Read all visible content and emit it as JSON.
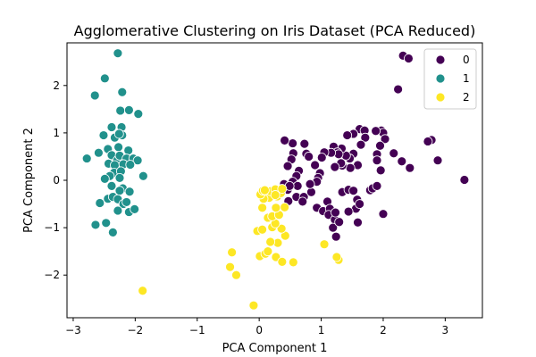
{
  "chart_data": {
    "type": "scatter",
    "title": "Agglomerative Clustering on Iris Dataset (PCA Reduced)",
    "xlabel": "PCA Component 1",
    "ylabel": "PCA Component 2",
    "xlim": [
      -3.1,
      3.6
    ],
    "ylim": [
      -2.9,
      2.9
    ],
    "xticks": [
      -3,
      -2,
      -1,
      0,
      1,
      2,
      3
    ],
    "yticks": [
      -2,
      -1,
      0,
      1,
      2
    ],
    "grid": false,
    "legend": {
      "placement": "top-right",
      "entries": [
        "0",
        "1",
        "2"
      ]
    },
    "colors": {
      "0": "#440154",
      "1": "#21918c",
      "2": "#fde725"
    },
    "series": [
      {
        "name": "0",
        "color": "#440154",
        "points": [
          [
            2.32,
            2.63
          ],
          [
            2.41,
            2.57
          ],
          [
            2.24,
            1.92
          ],
          [
            2.78,
            0.85
          ],
          [
            2.72,
            0.82
          ],
          [
            2.88,
            0.42
          ],
          [
            3.31,
            0.01
          ],
          [
            1.97,
            1.05
          ],
          [
            2.0,
            1.0
          ],
          [
            1.88,
            1.04
          ],
          [
            2.03,
            0.87
          ],
          [
            1.95,
            0.73
          ],
          [
            1.9,
            0.55
          ],
          [
            1.9,
            0.42
          ],
          [
            2.17,
            0.57
          ],
          [
            2.3,
            0.4
          ],
          [
            2.43,
            0.26
          ],
          [
            1.96,
            0.21
          ],
          [
            1.62,
            1.08
          ],
          [
            1.7,
            1.05
          ],
          [
            1.71,
            0.9
          ],
          [
            1.64,
            0.75
          ],
          [
            1.52,
            0.98
          ],
          [
            1.42,
            0.95
          ],
          [
            1.52,
            0.56
          ],
          [
            1.46,
            0.46
          ],
          [
            1.4,
            0.52
          ],
          [
            1.59,
            0.32
          ],
          [
            1.47,
            0.26
          ],
          [
            1.34,
            0.31
          ],
          [
            1.33,
            0.67
          ],
          [
            1.2,
            0.71
          ],
          [
            1.26,
            0.59
          ],
          [
            1.28,
            0.55
          ],
          [
            1.32,
            0.36
          ],
          [
            1.22,
            0.28
          ],
          [
            1.16,
            0.58
          ],
          [
            1.05,
            0.59
          ],
          [
            1.01,
            0.48
          ],
          [
            0.9,
            0.32
          ],
          [
            0.98,
            0.15
          ],
          [
            0.95,
            0.05
          ],
          [
            0.93,
            -0.03
          ],
          [
            0.73,
            0.77
          ],
          [
            0.76,
            0.56
          ],
          [
            0.8,
            0.5
          ],
          [
            0.54,
            0.78
          ],
          [
            0.55,
            0.57
          ],
          [
            0.52,
            0.44
          ],
          [
            0.46,
            0.3
          ],
          [
            0.41,
            0.84
          ],
          [
            0.64,
            0.2
          ],
          [
            0.6,
            0.09
          ],
          [
            0.54,
            -0.03
          ],
          [
            0.46,
            -0.2
          ],
          [
            0.4,
            -0.08
          ],
          [
            0.6,
            -0.35
          ],
          [
            0.72,
            -0.35
          ],
          [
            0.84,
            -0.25
          ],
          [
            0.93,
            -0.58
          ],
          [
            1.03,
            -0.65
          ],
          [
            1.1,
            -0.45
          ],
          [
            1.14,
            -0.6
          ],
          [
            1.12,
            -0.73
          ],
          [
            1.22,
            -0.83
          ],
          [
            1.23,
            -0.68
          ],
          [
            1.19,
            -1.0
          ],
          [
            1.24,
            -1.19
          ],
          [
            1.34,
            -0.25
          ],
          [
            1.44,
            -0.2
          ],
          [
            1.52,
            -0.22
          ],
          [
            1.58,
            -0.41
          ],
          [
            1.56,
            -0.6
          ],
          [
            1.44,
            -0.66
          ],
          [
            1.62,
            -0.5
          ],
          [
            1.79,
            -0.21
          ],
          [
            1.83,
            -0.17
          ],
          [
            1.9,
            -0.12
          ],
          [
            2.0,
            -0.71
          ],
          [
            1.59,
            -0.89
          ],
          [
            1.29,
            -0.88
          ],
          [
            0.7,
            -0.45
          ],
          [
            0.47,
            -0.44
          ],
          [
            0.62,
            -0.12
          ],
          [
            0.82,
            -0.08
          ],
          [
            0.49,
            -0.12
          ]
        ]
      },
      {
        "name": "1",
        "color": "#21918c",
        "points": [
          [
            -2.28,
            2.68
          ],
          [
            -2.49,
            2.15
          ],
          [
            -2.65,
            1.79
          ],
          [
            -2.21,
            1.86
          ],
          [
            -2.24,
            1.47
          ],
          [
            -2.1,
            1.48
          ],
          [
            -1.95,
            1.4
          ],
          [
            -2.38,
            1.12
          ],
          [
            -2.22,
            1.12
          ],
          [
            -2.51,
            0.95
          ],
          [
            -2.33,
            0.9
          ],
          [
            -2.21,
            0.95
          ],
          [
            -2.26,
            0.98
          ],
          [
            -2.44,
            0.66
          ],
          [
            -2.27,
            0.7
          ],
          [
            -2.11,
            0.63
          ],
          [
            -2.59,
            0.58
          ],
          [
            -2.78,
            0.46
          ],
          [
            -2.38,
            0.53
          ],
          [
            -2.29,
            0.42
          ],
          [
            -2.25,
            0.52
          ],
          [
            -2.14,
            0.46
          ],
          [
            -2.03,
            0.46
          ],
          [
            -1.96,
            0.42
          ],
          [
            -2.43,
            0.35
          ],
          [
            -2.33,
            0.32
          ],
          [
            -2.19,
            0.34
          ],
          [
            -2.08,
            0.33
          ],
          [
            -2.34,
            0.16
          ],
          [
            -2.23,
            0.19
          ],
          [
            -2.41,
            0.09
          ],
          [
            -2.49,
            0.03
          ],
          [
            -2.25,
            0.05
          ],
          [
            -1.87,
            0.09
          ],
          [
            -2.38,
            -0.12
          ],
          [
            -2.2,
            -0.17
          ],
          [
            -2.25,
            -0.22
          ],
          [
            -2.09,
            -0.24
          ],
          [
            -2.44,
            -0.39
          ],
          [
            -2.36,
            -0.35
          ],
          [
            -2.28,
            -0.4
          ],
          [
            -2.57,
            -0.48
          ],
          [
            -2.19,
            -0.5
          ],
          [
            -2.14,
            -0.46
          ],
          [
            -2.28,
            -0.64
          ],
          [
            -2.1,
            -0.67
          ],
          [
            -2.01,
            -0.61
          ],
          [
            -2.47,
            -0.9
          ],
          [
            -2.64,
            -0.94
          ],
          [
            -2.36,
            -1.1
          ]
        ]
      },
      {
        "name": "2",
        "color": "#fde725",
        "points": [
          [
            -1.88,
            -2.33
          ],
          [
            -0.09,
            -2.64
          ],
          [
            -0.44,
            -1.52
          ],
          [
            -0.47,
            -1.83
          ],
          [
            -0.37,
            -2.0
          ],
          [
            0.01,
            -1.6
          ],
          [
            0.1,
            -1.55
          ],
          [
            0.14,
            -1.5
          ],
          [
            0.27,
            -1.62
          ],
          [
            0.37,
            -1.72
          ],
          [
            0.55,
            -1.73
          ],
          [
            1.28,
            -1.68
          ],
          [
            1.25,
            -1.62
          ],
          [
            1.05,
            -1.35
          ],
          [
            0.3,
            -1.32
          ],
          [
            0.18,
            -1.3
          ],
          [
            0.42,
            -1.17
          ],
          [
            0.36,
            -1.02
          ],
          [
            0.21,
            -0.99
          ],
          [
            -0.03,
            -1.07
          ],
          [
            0.05,
            -1.04
          ],
          [
            0.26,
            -0.91
          ],
          [
            0.14,
            -0.79
          ],
          [
            0.21,
            -0.76
          ],
          [
            0.32,
            -0.73
          ],
          [
            0.41,
            -0.57
          ],
          [
            0.27,
            -0.58
          ],
          [
            0.05,
            -0.58
          ],
          [
            0.16,
            -0.37
          ],
          [
            0.29,
            -0.34
          ],
          [
            0.35,
            -0.27
          ],
          [
            0.07,
            -0.39
          ],
          [
            0.02,
            -0.3
          ],
          [
            0.06,
            -0.22
          ],
          [
            0.18,
            -0.23
          ],
          [
            0.09,
            -0.21
          ],
          [
            0.26,
            -0.19
          ],
          [
            0.37,
            -0.18
          ],
          [
            0.26,
            -0.31
          ]
        ]
      }
    ]
  }
}
